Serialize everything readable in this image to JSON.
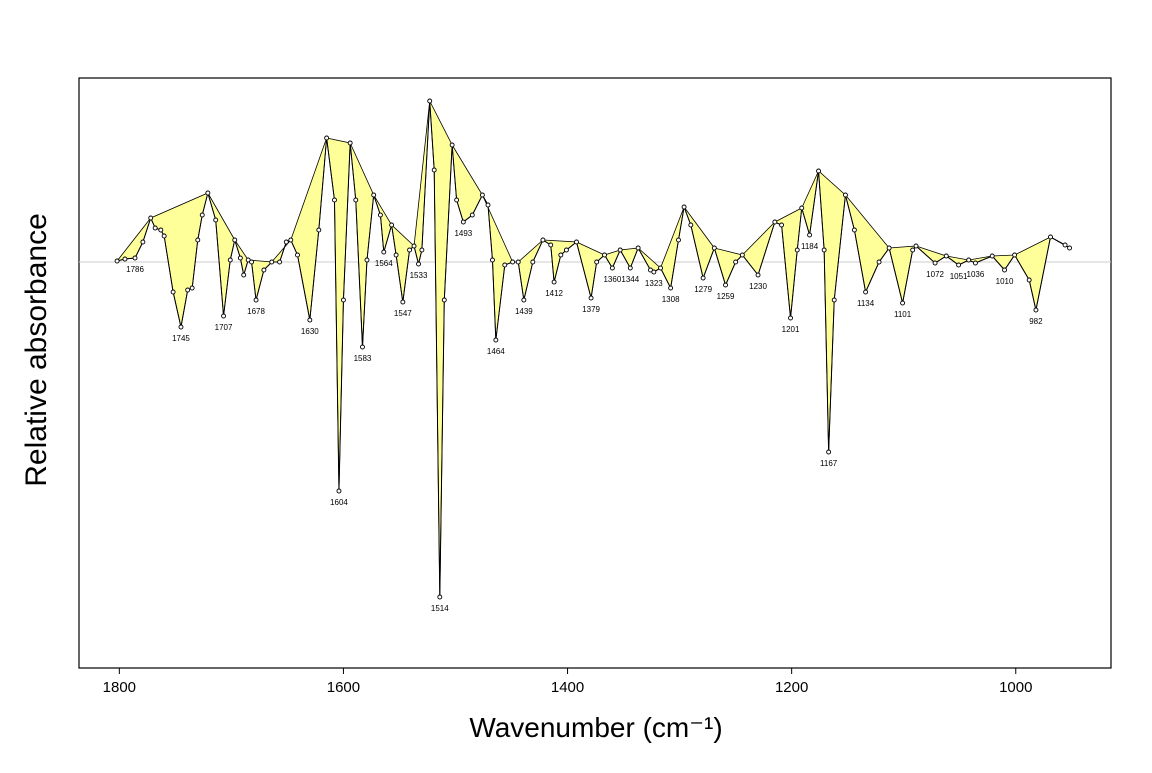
{
  "chart_data": {
    "type": "line",
    "x_label": "Wavenumber (cm⁻¹)",
    "y_label": "Relative absorbance",
    "xlim": [
      1836,
      915
    ],
    "ylim": [
      -4.06,
      1.84
    ],
    "xticks": [
      1800,
      1600,
      1400,
      1200,
      1000
    ],
    "hline": 0,
    "line_color": "#000000",
    "fill_color": "#ffff99",
    "x": [
      1802,
      1795,
      1786,
      1779,
      1772,
      1768,
      1763,
      1760,
      1752,
      1745,
      1739,
      1735,
      1730,
      1726,
      1721,
      1714,
      1707,
      1701,
      1697,
      1692,
      1689,
      1685,
      1682,
      1678,
      1671,
      1664,
      1657,
      1651,
      1647,
      1641,
      1630,
      1622,
      1615,
      1608,
      1604,
      1600,
      1594,
      1589,
      1583,
      1579,
      1573,
      1567,
      1564,
      1557,
      1553,
      1547,
      1541,
      1537,
      1533,
      1530,
      1523,
      1519,
      1514,
      1510,
      1503,
      1499,
      1493,
      1485,
      1476,
      1471,
      1467,
      1464,
      1456,
      1449,
      1444,
      1439,
      1431,
      1422,
      1415,
      1412,
      1406,
      1401,
      1392,
      1379,
      1374,
      1367,
      1360,
      1353,
      1344,
      1337,
      1326,
      1323,
      1317,
      1308,
      1301,
      1296,
      1290,
      1279,
      1269,
      1259,
      1250,
      1244,
      1230,
      1215,
      1209,
      1201,
      1195,
      1191,
      1184,
      1176,
      1171,
      1167,
      1162,
      1152,
      1144,
      1134,
      1122,
      1113,
      1101,
      1092,
      1089,
      1072,
      1062,
      1051,
      1042,
      1036,
      1021,
      1010,
      1001,
      988,
      982,
      969,
      956,
      952
    ],
    "values": [
      0.01,
      0.03,
      0.04,
      0.2,
      0.44,
      0.34,
      0.32,
      0.26,
      -0.3,
      -0.65,
      -0.28,
      -0.26,
      0.22,
      0.47,
      0.69,
      0.42,
      -0.54,
      0.02,
      0.22,
      0.04,
      -0.13,
      0.02,
      0.0,
      -0.38,
      -0.08,
      0.0,
      0.0,
      0.2,
      0.22,
      0.07,
      -0.58,
      0.32,
      1.24,
      0.62,
      -2.29,
      -0.38,
      1.19,
      0.62,
      -0.85,
      0.02,
      0.67,
      0.47,
      0.1,
      0.37,
      0.07,
      -0.4,
      0.12,
      0.16,
      -0.02,
      0.12,
      1.61,
      0.92,
      -3.35,
      -0.38,
      1.17,
      0.62,
      0.4,
      0.47,
      0.67,
      0.57,
      0.02,
      -0.78,
      -0.03,
      0.0,
      0.0,
      -0.38,
      0.0,
      0.22,
      0.17,
      -0.2,
      0.07,
      0.12,
      0.2,
      -0.36,
      0.0,
      0.07,
      -0.06,
      0.12,
      -0.06,
      0.14,
      -0.08,
      -0.1,
      -0.06,
      -0.26,
      0.22,
      0.55,
      0.37,
      -0.16,
      0.14,
      -0.23,
      0.0,
      0.07,
      -0.13,
      0.4,
      0.37,
      -0.56,
      0.12,
      0.54,
      0.27,
      0.91,
      0.12,
      -1.9,
      -0.38,
      0.67,
      0.32,
      -0.3,
      0.0,
      0.14,
      -0.41,
      0.12,
      0.16,
      -0.01,
      0.06,
      -0.03,
      0.02,
      -0.01,
      0.06,
      -0.08,
      0.07,
      -0.18,
      -0.48,
      0.25,
      0.17,
      0.14
    ],
    "peak_labels": [
      1786,
      1745,
      1707,
      1678,
      1630,
      1604,
      1583,
      1564,
      1547,
      1533,
      1514,
      1493,
      1464,
      1439,
      1412,
      1379,
      1360,
      1344,
      1323,
      1308,
      1279,
      1259,
      1230,
      1201,
      1184,
      1167,
      1134,
      1101,
      1072,
      1051,
      1036,
      1010,
      982
    ]
  }
}
